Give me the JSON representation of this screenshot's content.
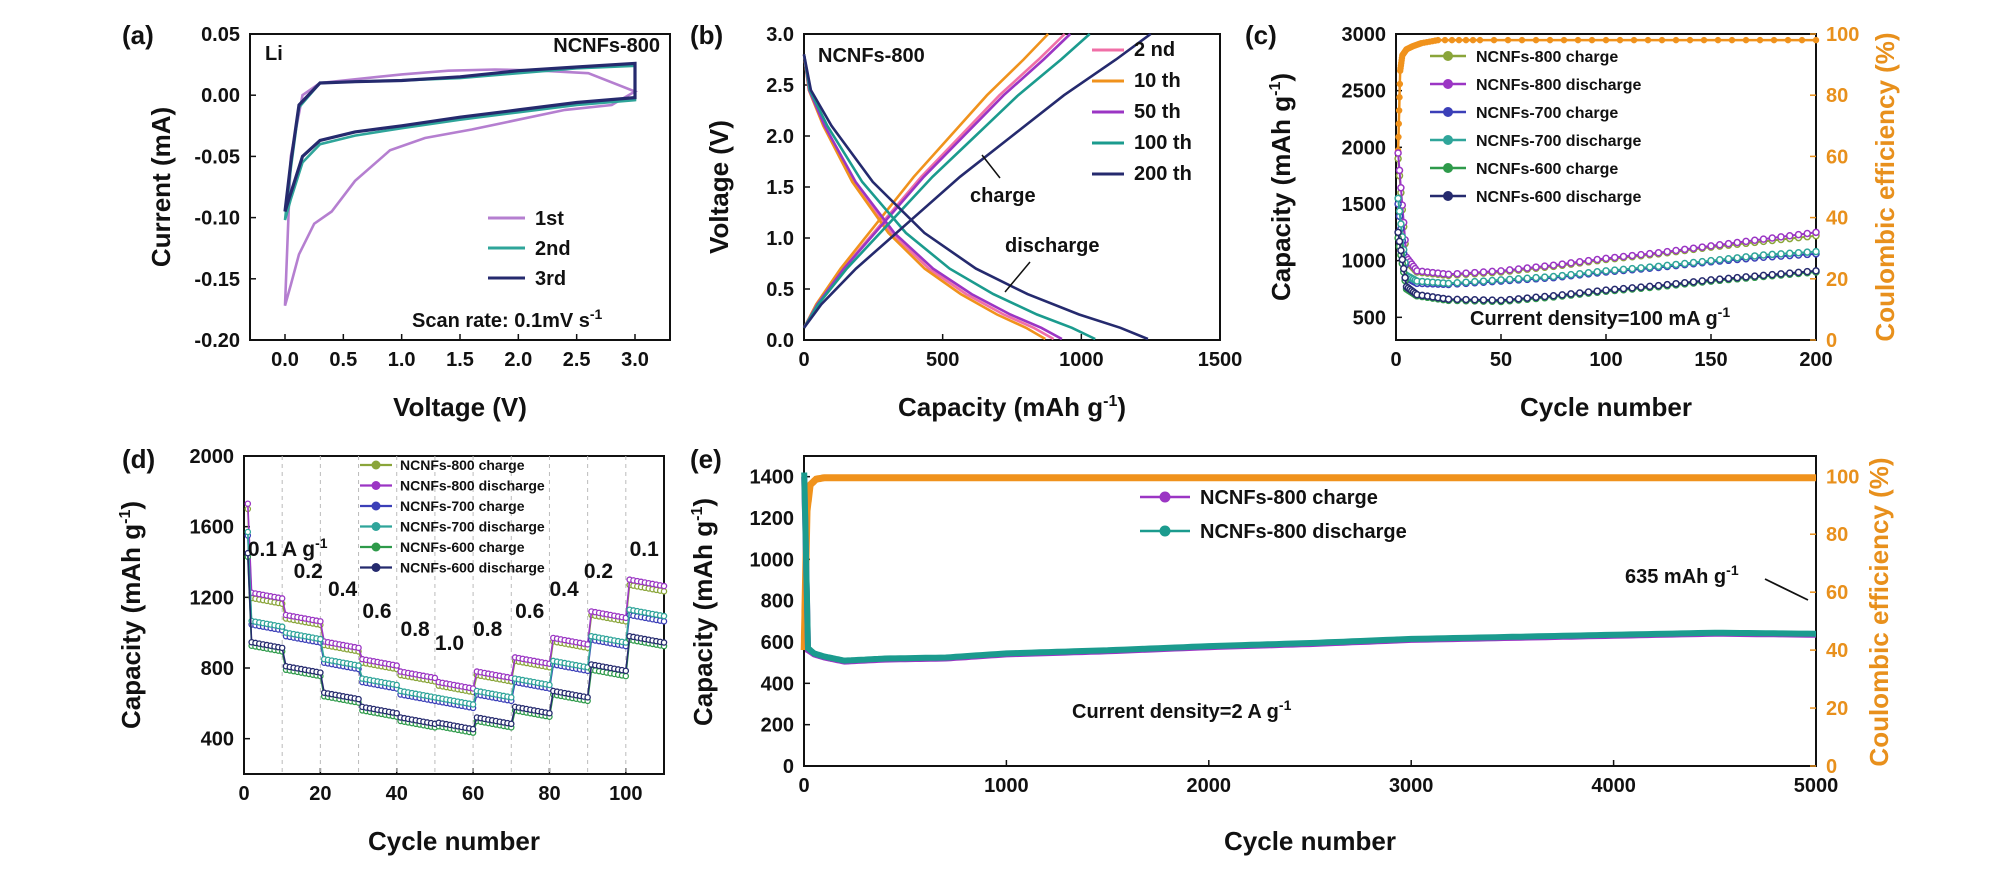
{
  "chart_data": [
    {
      "id": "a",
      "type": "line",
      "panel_label": "(a)",
      "xlabel": "Voltage (V)",
      "ylabel": "Current (mA)",
      "xlim": [
        -0.3,
        3.3
      ],
      "ylim": [
        -0.2,
        0.05
      ],
      "xticks": [
        "0.0",
        "0.5",
        "1.0",
        "1.5",
        "2.0",
        "2.5",
        "3.0"
      ],
      "yticks": [
        "0.05",
        "0.00",
        "-0.05",
        "-0.10",
        "-0.15",
        "-0.20"
      ],
      "annotations": {
        "topleft": "Li",
        "topright": "NCNFs-800",
        "note": "Scan rate: 0.1mV s"
      },
      "legend_position": "bottom-right",
      "series": [
        {
          "name": "1st",
          "color": "#b57fd0",
          "x": [
            0.0,
            0.05,
            0.12,
            0.25,
            0.4,
            0.6,
            0.9,
            1.2,
            1.6,
            2.0,
            2.4,
            2.8,
            3.0,
            2.6,
            2.2,
            1.8,
            1.4,
            1.0,
            0.6,
            0.3,
            0.15,
            0.05,
            0.0
          ],
          "y": [
            -0.172,
            -0.155,
            -0.13,
            -0.105,
            -0.095,
            -0.07,
            -0.045,
            -0.035,
            -0.028,
            -0.02,
            -0.012,
            -0.008,
            0.003,
            0.018,
            0.02,
            0.021,
            0.02,
            0.017,
            0.013,
            0.01,
            0.0,
            -0.05,
            -0.172
          ]
        },
        {
          "name": "2nd",
          "color": "#2fa59a",
          "x": [
            0.0,
            0.05,
            0.15,
            0.3,
            0.6,
            1.0,
            1.5,
            2.0,
            2.5,
            3.0,
            3.0,
            2.5,
            2.0,
            1.5,
            1.0,
            0.6,
            0.3,
            0.12,
            0.05,
            0.0
          ],
          "y": [
            -0.102,
            -0.085,
            -0.055,
            -0.04,
            -0.033,
            -0.027,
            -0.02,
            -0.014,
            -0.008,
            -0.004,
            0.024,
            0.022,
            0.018,
            0.014,
            0.012,
            0.011,
            0.01,
            -0.01,
            -0.06,
            -0.102
          ]
        },
        {
          "name": "3rd",
          "color": "#252a6e",
          "x": [
            0.0,
            0.05,
            0.15,
            0.3,
            0.6,
            1.0,
            1.5,
            2.0,
            2.5,
            3.0,
            3.0,
            2.5,
            2.0,
            1.5,
            1.0,
            0.6,
            0.3,
            0.12,
            0.05,
            0.0
          ],
          "y": [
            -0.095,
            -0.08,
            -0.05,
            -0.037,
            -0.03,
            -0.025,
            -0.018,
            -0.012,
            -0.006,
            -0.002,
            0.026,
            0.023,
            0.02,
            0.015,
            0.012,
            0.011,
            0.01,
            -0.008,
            -0.055,
            -0.095
          ]
        }
      ]
    },
    {
      "id": "b",
      "type": "line",
      "panel_label": "(b)",
      "xlabel": "Capacity (mAh g",
      "ylabel": "Voltage (V)",
      "xlim": [
        0,
        1500
      ],
      "ylim": [
        0,
        3
      ],
      "xticks": [
        "0",
        "500",
        "1000",
        "1500"
      ],
      "yticks": [
        "0.0",
        "0.5",
        "1.0",
        "1.5",
        "2.0",
        "2.5",
        "3.0"
      ],
      "annotations": {
        "title": "NCNFs-800",
        "charge": "charge",
        "discharge": "discharge"
      },
      "legend_position": "top-right",
      "series": [
        {
          "name": "2 nd",
          "color": "#f06fa7",
          "discharge_end": 900,
          "charge_end": 940
        },
        {
          "name": "10 th",
          "color": "#f0921c",
          "discharge_end": 870,
          "charge_end": 880
        },
        {
          "name": "50 th",
          "color": "#9b35c4",
          "discharge_end": 930,
          "charge_end": 960
        },
        {
          "name": "100 th",
          "color": "#1b9b8e",
          "discharge_end": 1050,
          "charge_end": 1030
        },
        {
          "name": "200 th",
          "color": "#252a6e",
          "discharge_end": 1240,
          "charge_end": 1250
        }
      ]
    },
    {
      "id": "c",
      "type": "scatter",
      "panel_label": "(c)",
      "xlabel": "Cycle number",
      "ylabel": "Capacity (mAh g",
      "y2label": "Coulombic efficiency (%)",
      "xlim": [
        0,
        200
      ],
      "ylim": [
        300,
        3000
      ],
      "y2lim": [
        0,
        100
      ],
      "xticks": [
        "0",
        "50",
        "100",
        "150",
        "200"
      ],
      "yticks": [
        "3000",
        "2500",
        "2000",
        "1500",
        "1000",
        "500"
      ],
      "y2ticks": [
        "100",
        "80",
        "60",
        "40",
        "20",
        "0"
      ],
      "annotations": {
        "note": "Current density=100 mA g"
      },
      "legend_position": "top-right",
      "series": [
        {
          "name": "NCNFs-800 charge",
          "color": "#8aa53a",
          "x": [
            1,
            5,
            10,
            25,
            50,
            75,
            100,
            125,
            150,
            175,
            200
          ],
          "y": [
            1900,
            1000,
            900,
            870,
            900,
            950,
            1010,
            1060,
            1120,
            1170,
            1220
          ]
        },
        {
          "name": "NCNFs-800 discharge",
          "color": "#9b35c4",
          "x": [
            1,
            5,
            10,
            25,
            50,
            75,
            100,
            125,
            150,
            175,
            200
          ],
          "y": [
            1950,
            1030,
            910,
            880,
            910,
            960,
            1020,
            1070,
            1130,
            1190,
            1250
          ]
        },
        {
          "name": "NCNFs-700 charge",
          "color": "#3b3fb8",
          "x": [
            1,
            5,
            10,
            25,
            50,
            75,
            100,
            125,
            150,
            175,
            200
          ],
          "y": [
            1500,
            850,
            800,
            790,
            820,
            850,
            900,
            940,
            990,
            1030,
            1060
          ]
        },
        {
          "name": "NCNFs-700 discharge",
          "color": "#2fa59a",
          "x": [
            1,
            5,
            10,
            25,
            50,
            75,
            100,
            125,
            150,
            175,
            200
          ],
          "y": [
            1550,
            870,
            820,
            800,
            830,
            860,
            910,
            950,
            1000,
            1050,
            1080
          ]
        },
        {
          "name": "NCNFs-600 charge",
          "color": "#2e9a4a",
          "x": [
            1,
            5,
            10,
            25,
            50,
            75,
            100,
            125,
            150,
            175,
            200
          ],
          "y": [
            1200,
            750,
            690,
            650,
            640,
            680,
            730,
            770,
            820,
            860,
            900
          ]
        },
        {
          "name": "NCNFs-600 discharge",
          "color": "#252a6e",
          "x": [
            1,
            5,
            10,
            25,
            50,
            75,
            100,
            125,
            150,
            175,
            200
          ],
          "y": [
            1250,
            770,
            700,
            660,
            650,
            690,
            740,
            780,
            830,
            870,
            910
          ]
        }
      ],
      "efficiency": {
        "color": "#f0921c",
        "x": [
          1,
          2,
          3,
          5,
          8,
          12,
          20,
          40,
          80,
          120,
          160,
          200
        ],
        "y": [
          62,
          88,
          93,
          95,
          96,
          97,
          98,
          98,
          98,
          98,
          98,
          98
        ]
      }
    },
    {
      "id": "d",
      "type": "scatter",
      "panel_label": "(d)",
      "xlabel": "Cycle number",
      "ylabel": "Capacity (mAh g",
      "xlim": [
        0,
        110
      ],
      "ylim": [
        200,
        2000
      ],
      "xticks": [
        "0",
        "20",
        "40",
        "60",
        "80",
        "100"
      ],
      "yticks": [
        "2000",
        "1600",
        "1200",
        "800",
        "400"
      ],
      "rate_labels": [
        {
          "text": "0.1 A g",
          "x": 1
        },
        {
          "text": "0.2",
          "x": 13
        },
        {
          "text": "0.4",
          "x": 22
        },
        {
          "text": "0.6",
          "x": 31
        },
        {
          "text": "0.8",
          "x": 41
        },
        {
          "text": "1.0",
          "x": 50
        },
        {
          "text": "0.8",
          "x": 60
        },
        {
          "text": "0.6",
          "x": 71
        },
        {
          "text": "0.4",
          "x": 80
        },
        {
          "text": "0.2",
          "x": 89
        },
        {
          "text": "0.1",
          "x": 101
        }
      ],
      "legend_position": "top-center",
      "series": [
        {
          "name": "NCNFs-800 charge",
          "color": "#8aa53a",
          "step": [
            1200,
            1080,
            930,
            830,
            760,
            700,
            760,
            840,
            950,
            1100,
            1270
          ]
        },
        {
          "name": "NCNFs-800 discharge",
          "color": "#9b35c4",
          "step": [
            1230,
            1100,
            950,
            850,
            780,
            720,
            780,
            860,
            970,
            1120,
            1300
          ]
        },
        {
          "name": "NCNFs-700 charge",
          "color": "#3b3fb8",
          "step": [
            1050,
            980,
            830,
            720,
            650,
            610,
            650,
            720,
            820,
            960,
            1100
          ]
        },
        {
          "name": "NCNFs-700 discharge",
          "color": "#2fa59a",
          "step": [
            1070,
            1000,
            850,
            740,
            670,
            630,
            670,
            740,
            840,
            980,
            1130
          ]
        },
        {
          "name": "NCNFs-600 charge",
          "color": "#2e9a4a",
          "step": [
            930,
            790,
            640,
            560,
            500,
            470,
            500,
            560,
            650,
            790,
            960
          ]
        },
        {
          "name": "NCNFs-600 discharge",
          "color": "#252a6e",
          "step": [
            950,
            810,
            660,
            580,
            520,
            490,
            520,
            580,
            670,
            820,
            980
          ]
        }
      ]
    },
    {
      "id": "e",
      "type": "scatter",
      "panel_label": "(e)",
      "xlabel": "Cycle number",
      "ylabel": "Capacity (mAh g",
      "y2label": "Coulombic efficiency (%)",
      "xlim": [
        0,
        5000
      ],
      "ylim": [
        0,
        1500
      ],
      "y2lim": [
        0,
        107
      ],
      "xticks": [
        "0",
        "1000",
        "2000",
        "3000",
        "4000",
        "5000"
      ],
      "yticks": [
        "1400",
        "1200",
        "1000",
        "800",
        "600",
        "400",
        "200",
        "0"
      ],
      "y2ticks": [
        "100",
        "80",
        "60",
        "40",
        "20",
        "0"
      ],
      "annotations": {
        "note": "Current density=2 A g",
        "final": "635  mAh g"
      },
      "legend_position": "top-center",
      "series": [
        {
          "name": "NCNFs-800 charge",
          "color": "#9b35c4",
          "x": [
            1,
            20,
            50,
            100,
            200,
            400,
            700,
            1000,
            1500,
            2000,
            2500,
            3000,
            3500,
            4000,
            4500,
            5000
          ],
          "y": [
            1400,
            560,
            540,
            525,
            505,
            515,
            520,
            540,
            555,
            575,
            590,
            610,
            620,
            630,
            640,
            635
          ]
        },
        {
          "name": "NCNFs-800 discharge",
          "color": "#1b9b8e",
          "x": [
            1,
            20,
            50,
            100,
            200,
            400,
            700,
            1000,
            1500,
            2000,
            2500,
            3000,
            3500,
            4000,
            4500,
            5000
          ],
          "y": [
            1420,
            570,
            545,
            530,
            510,
            520,
            525,
            545,
            560,
            580,
            595,
            615,
            625,
            635,
            645,
            640
          ]
        }
      ],
      "efficiency": {
        "color": "#f0921c",
        "x": [
          1,
          5,
          15,
          30,
          60,
          100,
          300,
          1000,
          2000,
          3000,
          4000,
          5000
        ],
        "y": [
          40,
          55,
          88,
          97,
          99,
          99.5,
          99.5,
          99.5,
          99.5,
          99.5,
          99.5,
          99.5
        ]
      }
    }
  ]
}
